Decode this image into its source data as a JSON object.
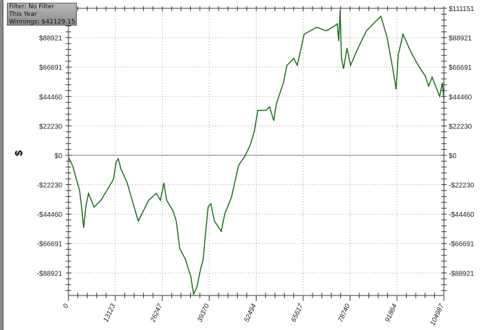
{
  "info_box": {
    "filter": "Filter: No Filter",
    "period": "This Year",
    "winnings": "Winnings: $42129.15"
  },
  "chart_data": {
    "type": "line",
    "title": "",
    "xlabel": "",
    "ylabel": "$",
    "xlim": [
      0,
      104987
    ],
    "ylim": [
      -106000,
      111151
    ],
    "x_ticks": [
      0,
      13123,
      26247,
      39370,
      52494,
      65617,
      78740,
      91864,
      104987
    ],
    "y_ticks": [
      111151,
      88921,
      66691,
      44460,
      22230,
      0,
      -22230,
      -44460,
      -66691,
      -88921
    ],
    "y_tick_labels": [
      "$111151",
      "$88921",
      "$66691",
      "$44460",
      "$22230",
      "$0",
      "-$22230",
      "-$44460",
      "-$66691",
      "-$88921"
    ],
    "grid": true,
    "zero_line": true,
    "line_color": "#1a6e1a",
    "series": [
      {
        "x": [
          0,
          1160,
          2510,
          3090,
          3670,
          4250,
          4830,
          5610,
          6380,
          7150,
          9090,
          11400,
          12560,
          13340,
          13920,
          14690,
          16430,
          18360,
          19520,
          20490,
          22420,
          24550,
          25710,
          26680,
          27450,
          29190,
          30150,
          31120,
          32670,
          34210,
          34990,
          35950,
          36920,
          37690,
          38470,
          39050,
          39820,
          40790,
          42720,
          43690,
          45620,
          47550,
          49480,
          50840,
          52000,
          52960,
          55280,
          56250,
          57410,
          58180,
          60120,
          61080,
          63020,
          63980,
          65920,
          69400,
          72100,
          74420,
          75190,
          75580,
          75970,
          76350,
          76930,
          77900,
          78870,
          80990,
          83310,
          86210,
          87370,
          89110,
          91040,
          91620,
          92200,
          93560,
          95680,
          97810,
          99740,
          100710,
          101680,
          103800,
          104570,
          104987
        ],
        "y": [
          -1600,
          -7800,
          -20900,
          -26200,
          -39200,
          -54900,
          -39200,
          -28800,
          -34000,
          -39200,
          -34000,
          -23500,
          -18300,
          -5200,
          -2600,
          -10500,
          -20900,
          -39200,
          -49700,
          -44500,
          -34000,
          -28800,
          -34000,
          -20900,
          -34000,
          -41800,
          -49700,
          -70600,
          -78500,
          -91500,
          -105000,
          -99400,
          -86300,
          -78500,
          -54900,
          -39200,
          -36600,
          -49700,
          -57500,
          -44500,
          -31400,
          -7800,
          0,
          7800,
          18300,
          34000,
          34000,
          36600,
          26200,
          39200,
          54900,
          68000,
          73200,
          68000,
          91500,
          96800,
          94100,
          97800,
          99400,
          86300,
          109800,
          73200,
          65400,
          81100,
          68000,
          81100,
          94100,
          102000,
          105100,
          88900,
          60100,
          49700,
          75800,
          91500,
          78500,
          68000,
          60100,
          52300,
          59100,
          44500,
          54900,
          42100
        ]
      }
    ]
  }
}
